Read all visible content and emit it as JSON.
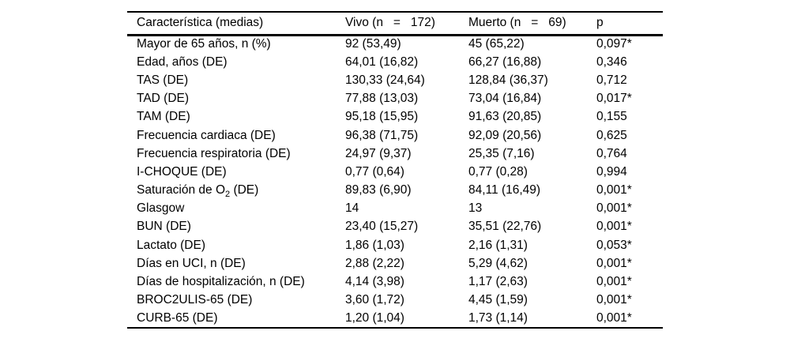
{
  "table": {
    "header": {
      "caracteristica": "Característica (medias)",
      "vivo": "Vivo (n   =   172)",
      "muerto": "Muerto (n   =   69)",
      "p": "p"
    },
    "rows": [
      {
        "label": "Mayor de 65 años, n (%)",
        "vivo": "92 (53,49)",
        "muerto": "45 (65,22)",
        "p": "0,097*"
      },
      {
        "label": "Edad, años (DE)",
        "vivo": "64,01 (16,82)",
        "muerto": "66,27 (16,88)",
        "p": "0,346"
      },
      {
        "label": "TAS (DE)",
        "vivo": "130,33 (24,64)",
        "muerto": "128,84 (36,37)",
        "p": "0,712"
      },
      {
        "label": "TAD (DE)",
        "vivo": "77,88 (13,03)",
        "muerto": "73,04 (16,84)",
        "p": "0,017*"
      },
      {
        "label": "TAM (DE)",
        "vivo": "95,18 (15,95)",
        "muerto": "91,63 (20,85)",
        "p": "0,155"
      },
      {
        "label": "Frecuencia cardiaca (DE)",
        "vivo": "96,38 (71,75)",
        "muerto": "92,09 (20,56)",
        "p": "0,625"
      },
      {
        "label": "Frecuencia respiratoria (DE)",
        "vivo": "24,97 (9,37)",
        "muerto": "25,35 (7,16)",
        "p": "0,764"
      },
      {
        "label": "I-CHOQUE (DE)",
        "vivo": "0,77 (0,64)",
        "muerto": "0,77 (0,28)",
        "p": "0,994"
      },
      {
        "label": "Saturación de O",
        "label_sub": "2",
        "label_after": " (DE)",
        "vivo": "89,83 (6,90)",
        "muerto": "84,11 (16,49)",
        "p": "0,001*"
      },
      {
        "label": "Glasgow",
        "vivo": "14",
        "muerto": "13",
        "p": "0,001*"
      },
      {
        "label": "BUN (DE)",
        "vivo": "23,40 (15,27)",
        "muerto": "35,51 (22,76)",
        "p": "0,001*"
      },
      {
        "label": "Lactato (DE)",
        "vivo": "1,86 (1,03)",
        "muerto": "2,16 (1,31)",
        "p": "0,053*"
      },
      {
        "label": "Días en UCI, n (DE)",
        "vivo": "2,88 (2,22)",
        "muerto": "5,29 (4,62)",
        "p": "0,001*"
      },
      {
        "label": "Días de hospitalización, n (DE)",
        "vivo": "4,14 (3,98)",
        "muerto": "1,17 (2,63)",
        "p": "0,001*"
      },
      {
        "label": "BROC2ULIS-65 (DE)",
        "vivo": "3,60 (1,72)",
        "muerto": "4,45 (1,59)",
        "p": "0,001*"
      },
      {
        "label": "CURB-65 (DE)",
        "vivo": "1,20 (1,04)",
        "muerto": "1,73 (1,14)",
        "p": "0,001*"
      }
    ]
  }
}
